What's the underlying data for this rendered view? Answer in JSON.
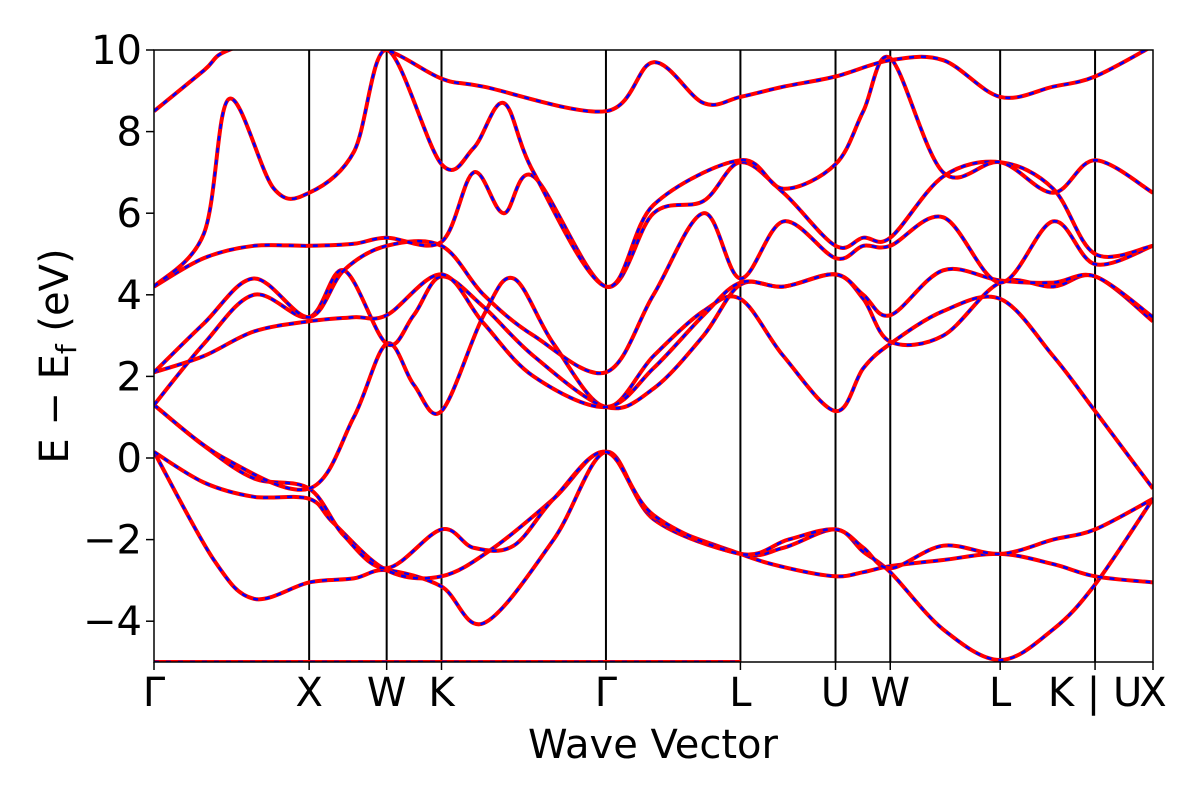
{
  "chart_data": {
    "type": "line",
    "title": "",
    "xlabel": "Wave Vector",
    "ylabel": "E − E_f (eV)",
    "ylim": [
      -5,
      10
    ],
    "yticks": [
      -4,
      -2,
      0,
      2,
      4,
      6,
      8,
      10
    ],
    "ytick_labels": [
      "−4",
      "−2",
      "0",
      "2",
      "4",
      "6",
      "8",
      "10"
    ],
    "x_range": [
      0,
      10
    ],
    "kpoint_positions": [
      0,
      1.553,
      2.329,
      2.878,
      4.524,
      5.87,
      6.822,
      7.37,
      8.47,
      9.42,
      10
    ],
    "kpoint_labels": [
      "Γ",
      "X",
      "W",
      "K",
      "Γ",
      "L",
      "U",
      "W",
      "L",
      "K | U",
      "X"
    ],
    "line_colors": {
      "solid": "#ff0000",
      "dashed": "#0000ff"
    },
    "bands": [
      [
        [
          0,
          -5.0
        ],
        [
          1.553,
          -5.0
        ],
        [
          2.329,
          -5.0
        ],
        [
          2.878,
          -5.0
        ],
        [
          4.524,
          -5.0
        ],
        [
          5.87,
          -5.0
        ]
      ],
      [
        [
          0,
          0.15
        ],
        [
          0.6,
          -2.5
        ],
        [
          1.0,
          -3.45
        ],
        [
          1.553,
          -3.05
        ],
        [
          2.0,
          -2.95
        ],
        [
          2.329,
          -2.75
        ],
        [
          2.878,
          -3.15
        ],
        [
          3.3,
          -4.05
        ],
        [
          4.0,
          -2.0
        ],
        [
          4.524,
          0.15
        ],
        [
          5.0,
          -1.5
        ],
        [
          5.87,
          -2.35
        ],
        [
          6.3,
          -2.2
        ],
        [
          6.822,
          -1.75
        ],
        [
          7.1,
          -2.3
        ],
        [
          7.37,
          -2.8
        ],
        [
          7.9,
          -4.2
        ],
        [
          8.47,
          -4.95
        ],
        [
          9.0,
          -4.2
        ],
        [
          9.42,
          -3.1
        ],
        [
          10,
          -1.0
        ]
      ],
      [
        [
          0,
          0.15
        ],
        [
          0.5,
          -0.6
        ],
        [
          1.0,
          -0.95
        ],
        [
          1.553,
          -1.0
        ],
        [
          1.8,
          -1.6
        ],
        [
          2.329,
          -2.75
        ],
        [
          2.878,
          -2.9
        ],
        [
          3.4,
          -2.2
        ],
        [
          4.0,
          -1.0
        ],
        [
          4.524,
          0.15
        ],
        [
          5.0,
          -1.45
        ],
        [
          5.87,
          -2.35
        ],
        [
          6.35,
          -2.7
        ],
        [
          6.822,
          -2.9
        ],
        [
          7.1,
          -2.8
        ],
        [
          7.37,
          -2.65
        ],
        [
          7.9,
          -2.5
        ],
        [
          8.47,
          -2.35
        ],
        [
          9.0,
          -2.6
        ],
        [
          9.42,
          -2.9
        ],
        [
          10,
          -3.05
        ]
      ],
      [
        [
          0,
          1.3
        ],
        [
          0.5,
          0.3
        ],
        [
          1.0,
          -0.5
        ],
        [
          1.553,
          -0.75
        ],
        [
          1.9,
          -1.9
        ],
        [
          2.329,
          -2.7
        ],
        [
          2.878,
          -1.75
        ],
        [
          3.2,
          -2.2
        ],
        [
          3.6,
          -2.15
        ],
        [
          4.0,
          -1.0
        ],
        [
          4.524,
          0.15
        ],
        [
          5.0,
          -1.4
        ],
        [
          5.87,
          -2.35
        ],
        [
          6.35,
          -2.0
        ],
        [
          6.822,
          -1.75
        ],
        [
          7.1,
          -2.2
        ],
        [
          7.37,
          -2.7
        ],
        [
          7.9,
          -2.15
        ],
        [
          8.47,
          -2.35
        ],
        [
          9.0,
          -2.0
        ],
        [
          9.42,
          -1.75
        ],
        [
          10,
          -1.0
        ]
      ],
      [
        [
          0,
          1.3
        ],
        [
          0.7,
          0.0
        ],
        [
          1.553,
          -0.75
        ],
        [
          2.0,
          1.0
        ],
        [
          2.329,
          2.8
        ],
        [
          2.6,
          1.8
        ],
        [
          2.878,
          1.15
        ],
        [
          3.3,
          3.5
        ],
        [
          3.6,
          4.4
        ],
        [
          4.0,
          2.8
        ],
        [
          4.524,
          1.25
        ],
        [
          5.0,
          2.5
        ],
        [
          5.5,
          3.6
        ],
        [
          5.87,
          3.9
        ],
        [
          6.3,
          2.5
        ],
        [
          6.822,
          1.15
        ],
        [
          7.1,
          2.2
        ],
        [
          7.37,
          2.8
        ],
        [
          7.9,
          3.6
        ],
        [
          8.47,
          3.9
        ],
        [
          9.0,
          2.5
        ],
        [
          9.42,
          1.15
        ],
        [
          10,
          -0.75
        ]
      ],
      [
        [
          0,
          1.3
        ],
        [
          0.5,
          2.8
        ],
        [
          1.0,
          4.0
        ],
        [
          1.553,
          3.45
        ],
        [
          1.9,
          4.6
        ],
        [
          2.329,
          2.8
        ],
        [
          2.6,
          3.5
        ],
        [
          2.878,
          4.45
        ],
        [
          3.3,
          3.7
        ],
        [
          3.8,
          2.5
        ],
        [
          4.524,
          1.25
        ],
        [
          5.0,
          1.7
        ],
        [
          5.5,
          3.0
        ],
        [
          5.87,
          4.25
        ],
        [
          6.3,
          4.2
        ],
        [
          6.822,
          4.5
        ],
        [
          7.1,
          3.9
        ],
        [
          7.37,
          2.85
        ],
        [
          7.9,
          3.0
        ],
        [
          8.47,
          4.3
        ],
        [
          9.0,
          4.2
        ],
        [
          9.42,
          4.45
        ],
        [
          10,
          3.35
        ]
      ],
      [
        [
          0,
          2.1
        ],
        [
          0.5,
          2.5
        ],
        [
          1.0,
          3.1
        ],
        [
          1.553,
          3.35
        ],
        [
          2.0,
          3.45
        ],
        [
          2.329,
          3.5
        ],
        [
          2.878,
          4.5
        ],
        [
          3.3,
          3.3
        ],
        [
          3.8,
          2.0
        ],
        [
          4.524,
          1.25
        ],
        [
          5.0,
          2.2
        ],
        [
          5.5,
          3.5
        ],
        [
          5.87,
          4.3
        ],
        [
          6.3,
          4.2
        ],
        [
          6.822,
          4.5
        ],
        [
          7.1,
          4.0
        ],
        [
          7.37,
          3.5
        ],
        [
          7.9,
          4.6
        ],
        [
          8.47,
          4.35
        ],
        [
          9.0,
          4.3
        ],
        [
          9.42,
          4.45
        ],
        [
          10,
          3.45
        ]
      ],
      [
        [
          0,
          2.1
        ],
        [
          0.5,
          3.3
        ],
        [
          1.0,
          4.4
        ],
        [
          1.553,
          3.45
        ],
        [
          1.9,
          4.6
        ],
        [
          2.329,
          5.2
        ],
        [
          2.878,
          5.2
        ],
        [
          3.3,
          4.0
        ],
        [
          3.8,
          3.0
        ],
        [
          4.524,
          2.1
        ],
        [
          5.0,
          4.0
        ],
        [
          5.5,
          6.0
        ],
        [
          5.87,
          4.4
        ],
        [
          6.3,
          5.8
        ],
        [
          6.822,
          4.9
        ],
        [
          7.1,
          5.2
        ],
        [
          7.37,
          5.2
        ],
        [
          7.9,
          5.9
        ],
        [
          8.47,
          4.3
        ],
        [
          9.0,
          5.8
        ],
        [
          9.42,
          4.75
        ],
        [
          10,
          5.2
        ]
      ],
      [
        [
          0,
          4.2
        ],
        [
          0.5,
          4.9
        ],
        [
          1.0,
          5.2
        ],
        [
          1.553,
          5.2
        ],
        [
          2.0,
          5.25
        ],
        [
          2.329,
          5.4
        ],
        [
          2.878,
          5.3
        ],
        [
          3.2,
          7.0
        ],
        [
          3.5,
          6.0
        ],
        [
          3.8,
          6.9
        ],
        [
          4.524,
          4.2
        ],
        [
          5.0,
          6.0
        ],
        [
          5.5,
          6.3
        ],
        [
          5.87,
          7.25
        ],
        [
          6.3,
          6.5
        ],
        [
          6.822,
          5.2
        ],
        [
          7.1,
          5.4
        ],
        [
          7.37,
          5.4
        ],
        [
          7.9,
          6.9
        ],
        [
          8.47,
          7.25
        ],
        [
          9.0,
          6.6
        ],
        [
          9.42,
          5.0
        ],
        [
          10,
          5.2
        ]
      ],
      [
        [
          0,
          4.2
        ],
        [
          0.5,
          5.5
        ],
        [
          0.75,
          8.8
        ],
        [
          1.2,
          6.6
        ],
        [
          1.553,
          6.5
        ],
        [
          2.0,
          7.5
        ],
        [
          2.329,
          10.0
        ],
        [
          2.878,
          7.2
        ],
        [
          3.2,
          7.6
        ],
        [
          3.5,
          8.7
        ],
        [
          3.8,
          7.0
        ],
        [
          4.524,
          4.2
        ],
        [
          5.0,
          6.2
        ],
        [
          5.87,
          7.3
        ],
        [
          6.3,
          6.6
        ],
        [
          6.822,
          7.2
        ],
        [
          7.1,
          8.5
        ],
        [
          7.37,
          9.8
        ],
        [
          7.9,
          7.0
        ],
        [
          8.47,
          7.25
        ],
        [
          9.0,
          6.5
        ],
        [
          9.42,
          7.3
        ],
        [
          10,
          6.5
        ]
      ],
      [
        [
          0,
          8.5
        ],
        [
          0.5,
          9.5
        ],
        [
          0.75,
          10.0
        ],
        [
          1.553,
          10.5
        ],
        [
          2.329,
          10.0
        ],
        [
          2.878,
          9.3
        ],
        [
          3.3,
          9.1
        ],
        [
          4.524,
          8.5
        ],
        [
          5.0,
          9.7
        ],
        [
          5.5,
          8.7
        ],
        [
          5.87,
          8.85
        ],
        [
          6.3,
          9.1
        ],
        [
          6.822,
          9.35
        ],
        [
          7.37,
          9.75
        ],
        [
          7.9,
          9.75
        ],
        [
          8.47,
          8.85
        ],
        [
          9.0,
          9.1
        ],
        [
          9.42,
          9.35
        ],
        [
          10,
          10.1
        ]
      ]
    ]
  }
}
